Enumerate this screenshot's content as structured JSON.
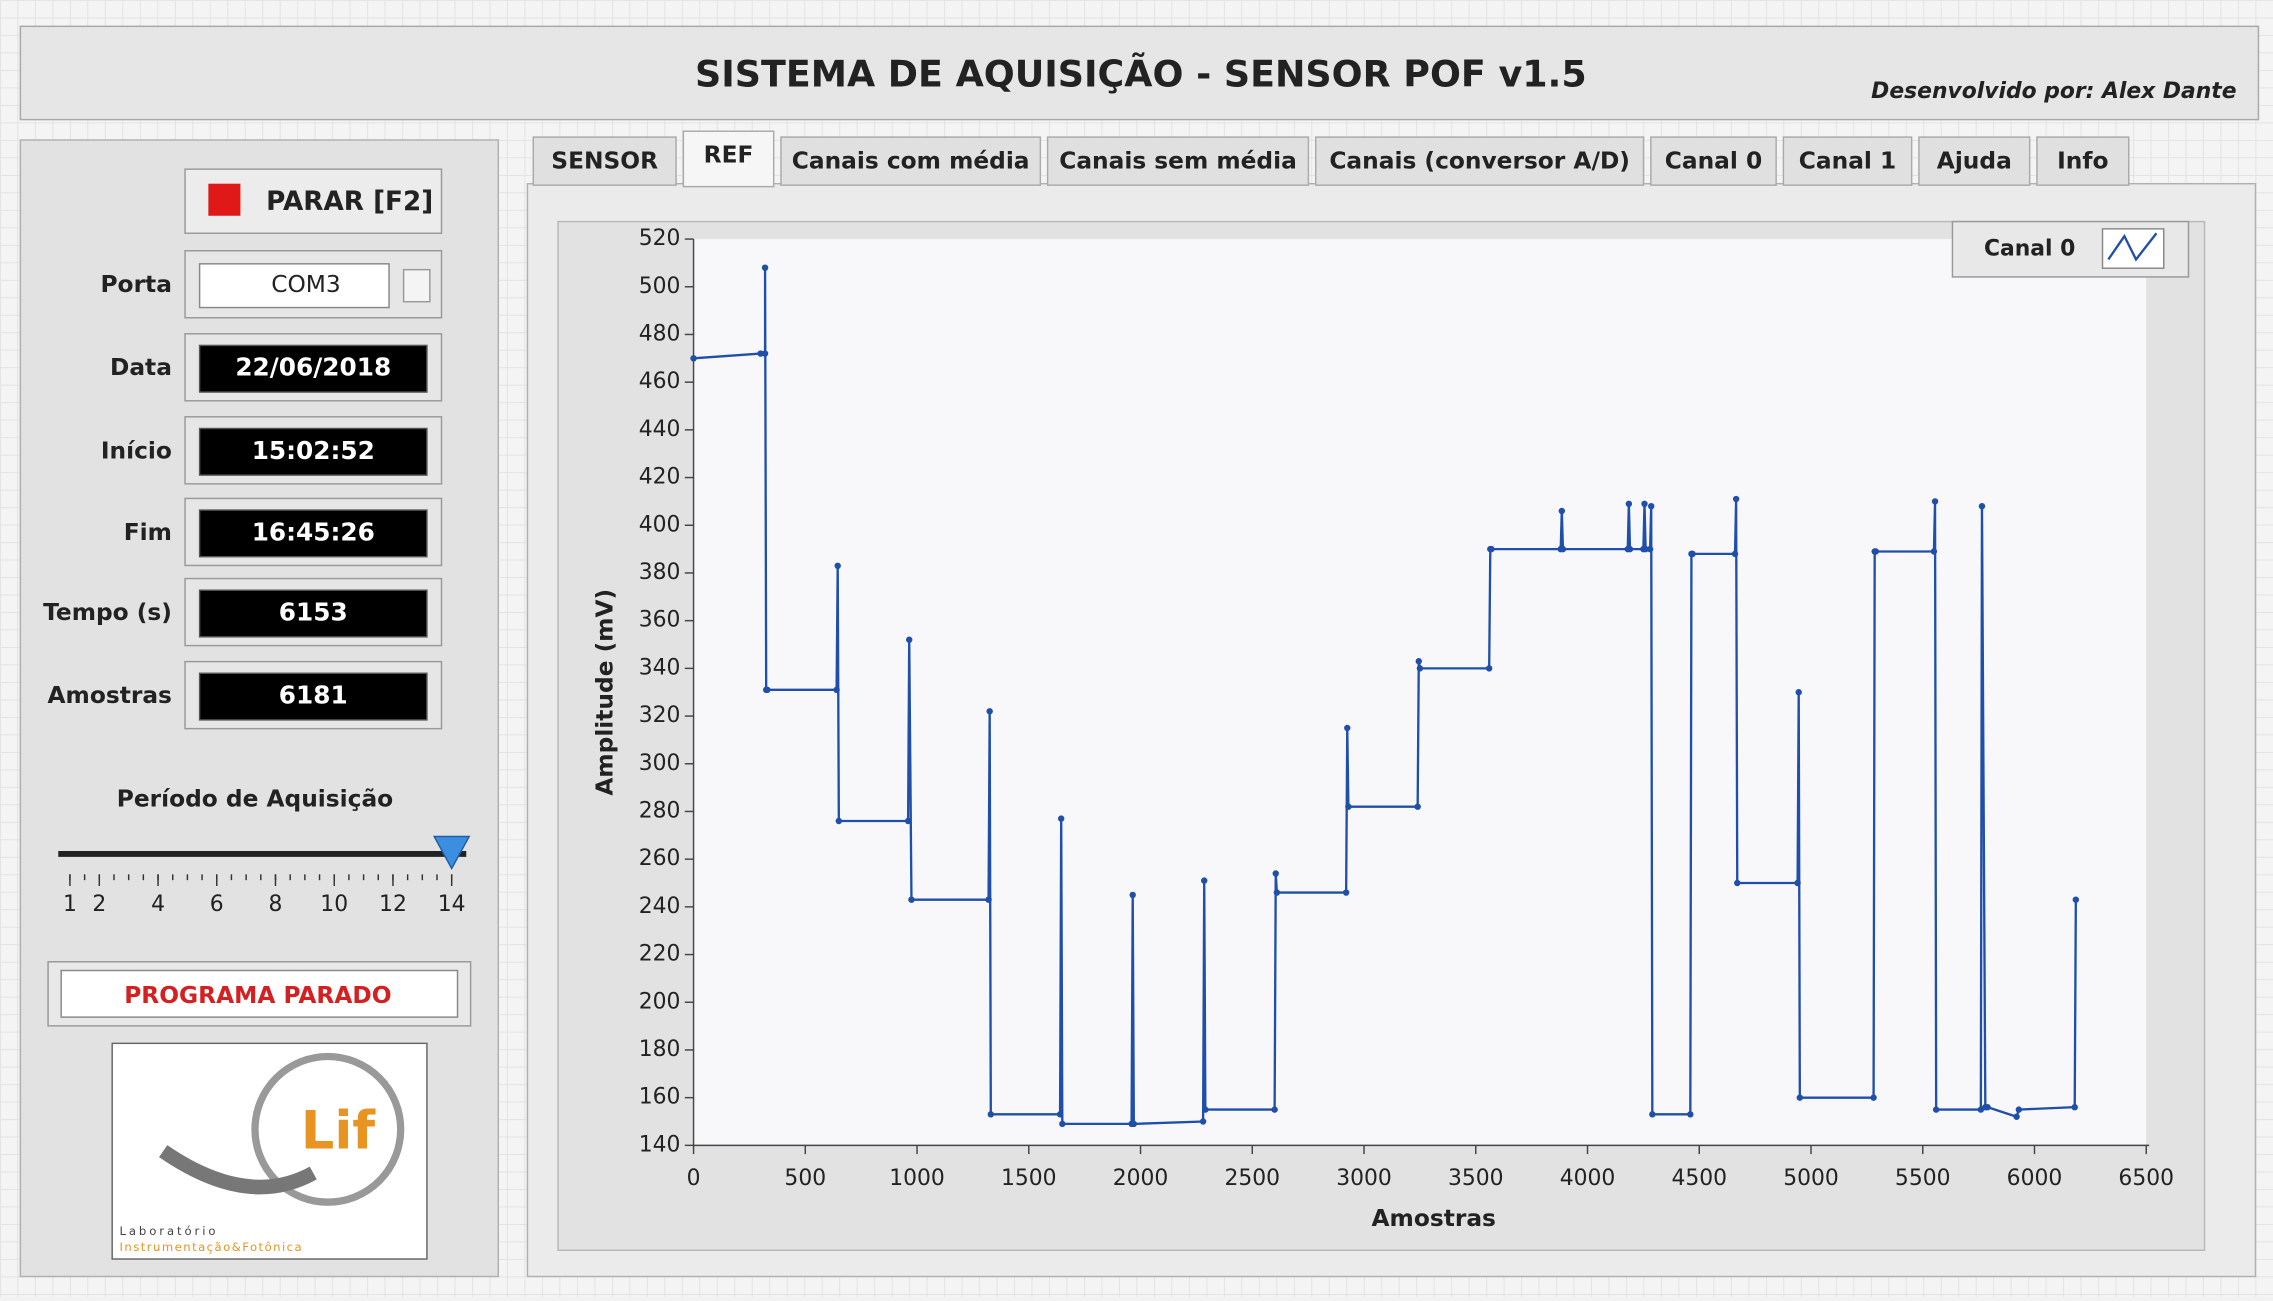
{
  "header": {
    "title": "SISTEMA DE AQUISIÇÃO - SENSOR POF v1.5",
    "developer": "Desenvolvido por: Alex Dante"
  },
  "tabs": [
    "SENSOR",
    "REF",
    "Canais com média",
    "Canais sem média",
    "Canais (conversor A/D)",
    "Canal 0",
    "Canal 1",
    "Ajuda",
    "Info"
  ],
  "panel": {
    "stop_button": "PARAR [F2]",
    "fields": [
      {
        "label": "Porta",
        "value": "COM3"
      },
      {
        "label": "Data",
        "value": "22/06/2018"
      },
      {
        "label": "Início",
        "value": "15:02:52"
      },
      {
        "label": "Fim",
        "value": "16:45:26"
      },
      {
        "label": "Tempo (s)",
        "value": "6153"
      },
      {
        "label": "Amostras",
        "value": "6181"
      }
    ],
    "slider": {
      "label": "Período de Aquisição",
      "ticks": [
        1,
        2,
        4,
        6,
        8,
        10,
        12,
        14
      ],
      "value": 14
    },
    "status": "PROGRAMA PARADO",
    "logo": {
      "name": "Lif",
      "line1": "Laboratório",
      "line2": "Instrumentação&Fotônica"
    }
  },
  "chart_data": {
    "type": "line",
    "xlabel": "Amostras",
    "ylabel": "Amplitude (mV)",
    "series": [
      {
        "name": "Canal 0",
        "color": "#1f4fa8",
        "x": [
          0,
          300,
          320,
          320,
          325,
          330,
          640,
          645,
          650,
          960,
          965,
          975,
          1320,
          1325,
          1330,
          1640,
          1645,
          1650,
          1960,
          1965,
          1970,
          2280,
          2285,
          2290,
          2600,
          2605,
          2610,
          2920,
          2925,
          2930,
          3240,
          3245,
          3250,
          3560,
          3565,
          3570,
          3880,
          3885,
          3890,
          4180,
          4185,
          4190,
          4250,
          4255,
          4260,
          4280,
          4285,
          4290,
          4460,
          4465,
          4470,
          4660,
          4665,
          4670,
          4940,
          4945,
          4950,
          5280,
          5285,
          5290,
          5550,
          5555,
          5560,
          5760,
          5765,
          5780,
          5790,
          5920,
          5930,
          6180,
          6185
        ],
        "values": [
          470,
          472,
          472,
          508,
          331,
          331,
          331,
          383,
          276,
          276,
          352,
          243,
          243,
          322,
          153,
          153,
          277,
          149,
          149,
          245,
          149,
          150,
          251,
          155,
          155,
          254,
          246,
          246,
          315,
          282,
          282,
          343,
          340,
          340,
          390,
          390,
          390,
          406,
          390,
          390,
          409,
          390,
          390,
          409,
          390,
          390,
          408,
          153,
          153,
          388,
          388,
          388,
          411,
          250,
          250,
          330,
          160,
          160,
          389,
          389,
          389,
          410,
          155,
          155,
          408,
          156,
          156,
          152,
          155,
          156,
          243
        ]
      }
    ],
    "xlim": [
      0,
      6500
    ],
    "xticks": [
      0,
      500,
      1000,
      1500,
      2000,
      2500,
      3000,
      3500,
      4000,
      4500,
      5000,
      5500,
      6000,
      6500
    ],
    "ylim": [
      140,
      520
    ],
    "yticks": [
      140,
      160,
      180,
      200,
      220,
      240,
      260,
      280,
      300,
      320,
      340,
      360,
      380,
      400,
      420,
      440,
      460,
      480,
      500,
      520
    ],
    "legend": "upper right"
  }
}
